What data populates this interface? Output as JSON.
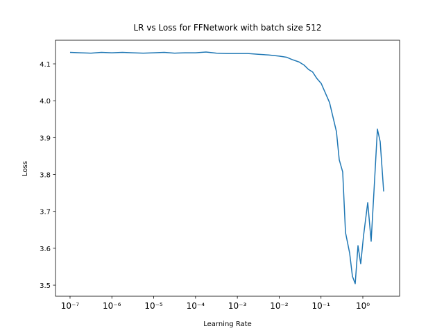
{
  "chart_data": {
    "type": "line",
    "title": "LR vs Loss for FFNetwork with batch size 512",
    "x_label": "Learning Rate",
    "y_label": "Loss",
    "x_scale": "log",
    "xlim": [
      4.49e-08,
      7.57
    ],
    "ylim": [
      3.47,
      4.164
    ],
    "xticks": [
      {
        "value": 1e-07,
        "label": "10⁻⁷"
      },
      {
        "value": 1e-06,
        "label": "10⁻⁶"
      },
      {
        "value": 1e-05,
        "label": "10⁻⁵"
      },
      {
        "value": 0.0001,
        "label": "10⁻⁴"
      },
      {
        "value": 0.001,
        "label": "10⁻³"
      },
      {
        "value": 0.01,
        "label": "10⁻²"
      },
      {
        "value": 0.1,
        "label": "10⁻¹"
      },
      {
        "value": 1,
        "label": "10⁰"
      }
    ],
    "yticks": [
      3.5,
      3.6,
      3.7,
      3.8,
      3.9,
      {
        "value": 4,
        "label": "4.0"
      },
      4.1
    ],
    "grid": false,
    "series": [
      {
        "name": "loss",
        "color": "#1f77b4",
        "x": [
          1e-07,
          1.78e-07,
          3.16e-07,
          5.62e-07,
          1e-06,
          1.78e-06,
          3.16e-06,
          5.62e-06,
          1e-05,
          1.78e-05,
          3.16e-05,
          5.62e-05,
          0.0001,
          0.000178,
          0.000316,
          0.000562,
          0.001,
          0.00178,
          0.00316,
          0.00562,
          0.01,
          0.015,
          0.02,
          0.03,
          0.04,
          0.05,
          0.063,
          0.08,
          0.101,
          0.16,
          0.234,
          0.273,
          0.33,
          0.385,
          0.484,
          0.564,
          0.657,
          0.766,
          0.891,
          1.04,
          1.31,
          1.58,
          1.91,
          2.23,
          2.6,
          3.15
        ],
        "values": [
          4.131,
          4.13,
          4.129,
          4.131,
          4.13,
          4.131,
          4.13,
          4.129,
          4.13,
          4.131,
          4.129,
          4.13,
          4.13,
          4.132,
          4.129,
          4.128,
          4.128,
          4.128,
          4.126,
          4.124,
          4.121,
          4.118,
          4.112,
          4.105,
          4.096,
          4.085,
          4.078,
          4.06,
          4.047,
          3.995,
          3.916,
          3.84,
          3.807,
          3.643,
          3.587,
          3.524,
          3.504,
          3.607,
          3.558,
          3.634,
          3.724,
          3.619,
          3.784,
          3.923,
          3.889,
          3.754
        ]
      }
    ]
  }
}
